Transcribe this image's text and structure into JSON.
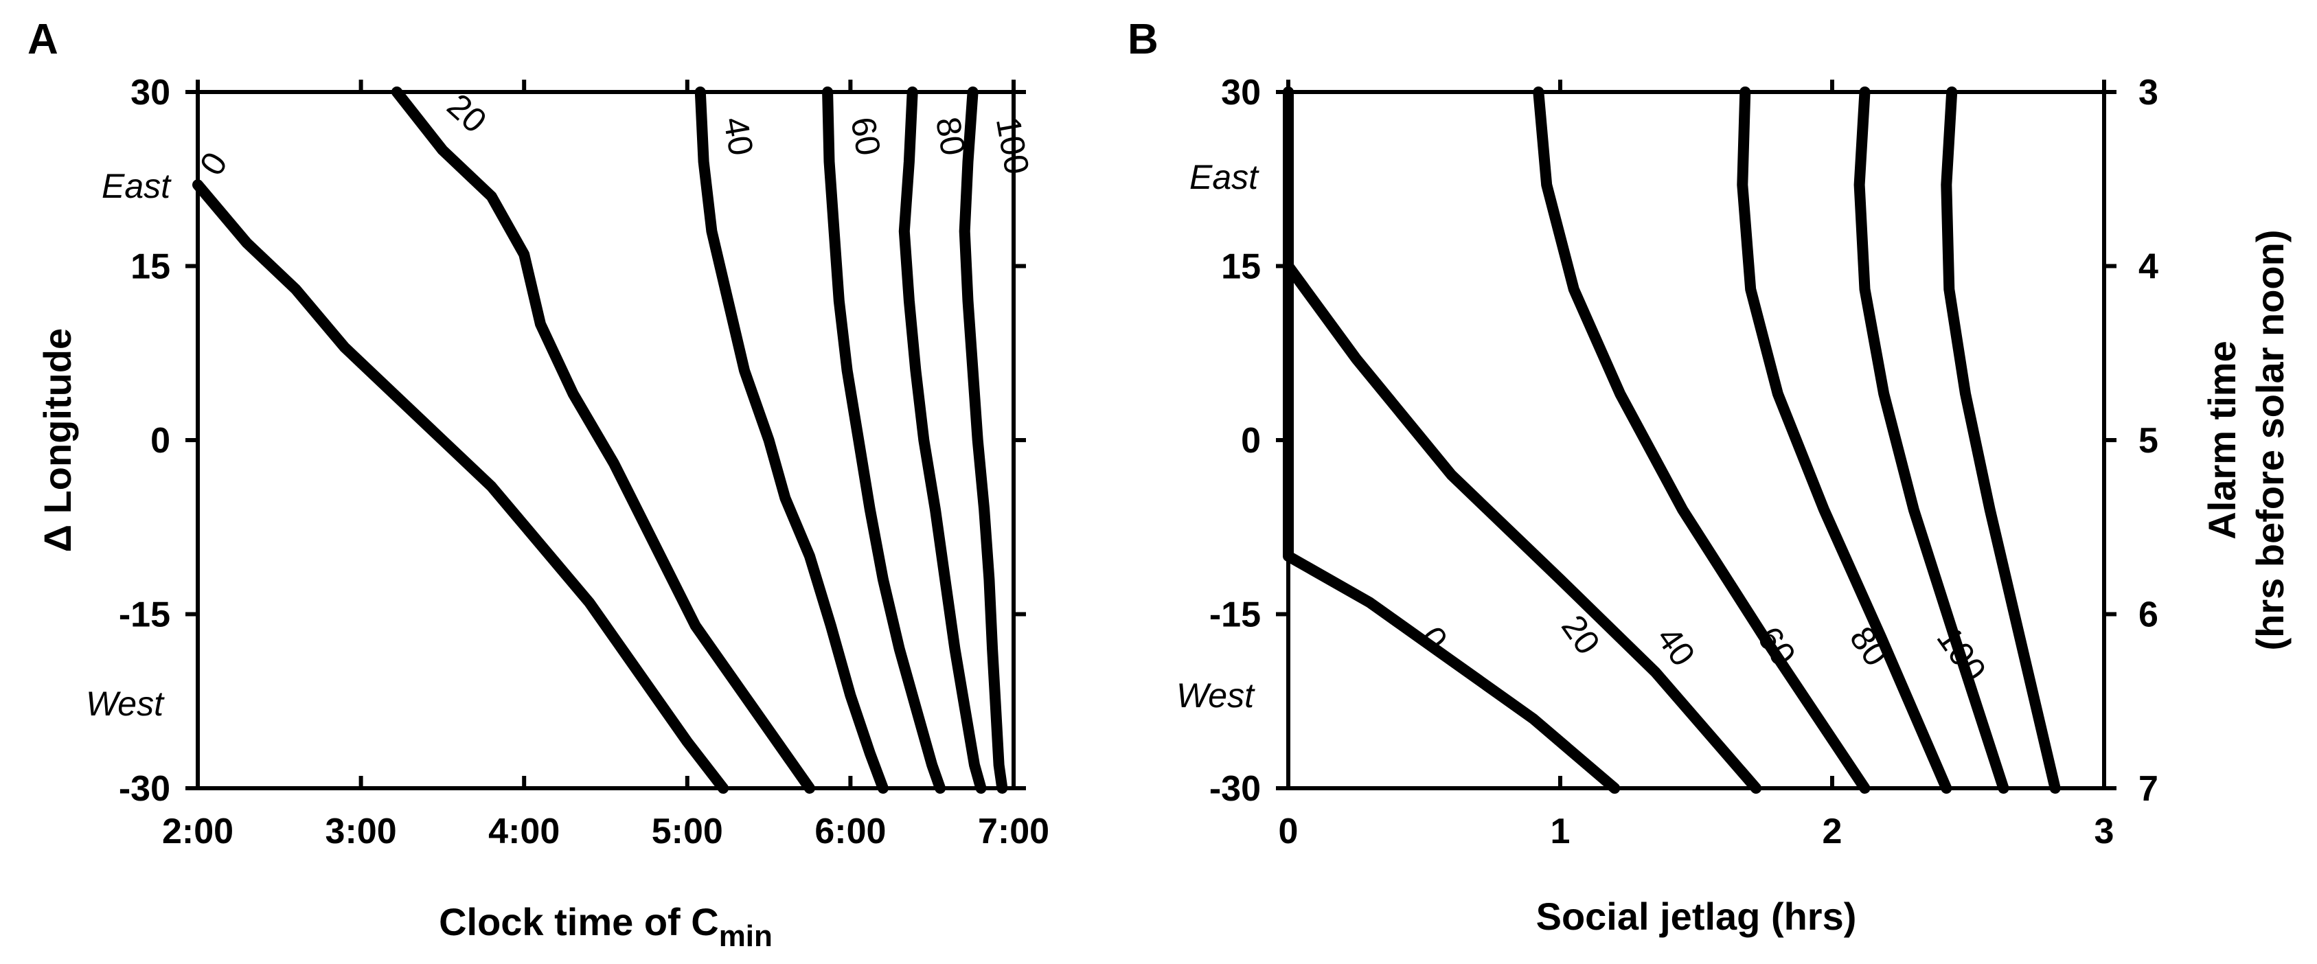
{
  "chart_data": [
    {
      "panel": "A",
      "type": "line",
      "xlabel": "Clock time of C",
      "xlabel_sub": "min",
      "ylabel": "Δ Longitude",
      "x_ticks": [
        "2:00",
        "3:00",
        "4:00",
        "5:00",
        "6:00",
        "7:00"
      ],
      "xlim": [
        2,
        7
      ],
      "y_ticks": [
        "30",
        "15",
        "0",
        "-15",
        "-30"
      ],
      "ylim": [
        -30,
        30
      ],
      "annotations": {
        "east": "East",
        "west": "West",
        "east_color": "#1a9a4a",
        "west_color": "#1a9a4a"
      },
      "label_color": "#1414e6",
      "series": [
        {
          "name": "0",
          "points": [
            [
              2.0,
              22
            ],
            [
              2.3,
              17
            ],
            [
              2.6,
              13
            ],
            [
              2.9,
              8
            ],
            [
              3.2,
              4
            ],
            [
              3.5,
              0
            ],
            [
              3.8,
              -4
            ],
            [
              4.1,
              -9
            ],
            [
              4.4,
              -14
            ],
            [
              4.7,
              -20
            ],
            [
              5.0,
              -26
            ],
            [
              5.22,
              -30
            ]
          ]
        },
        {
          "name": "20",
          "points": [
            [
              3.22,
              30
            ],
            [
              3.5,
              25
            ],
            [
              3.8,
              21
            ],
            [
              4.0,
              16
            ],
            [
              4.1,
              10
            ],
            [
              4.3,
              4
            ],
            [
              4.55,
              -2
            ],
            [
              4.8,
              -9
            ],
            [
              5.05,
              -16
            ],
            [
              5.35,
              -22
            ],
            [
              5.6,
              -27
            ],
            [
              5.75,
              -30
            ]
          ]
        },
        {
          "name": "40",
          "points": [
            [
              5.08,
              30
            ],
            [
              5.1,
              24
            ],
            [
              5.15,
              18
            ],
            [
              5.25,
              12
            ],
            [
              5.35,
              6
            ],
            [
              5.5,
              0
            ],
            [
              5.6,
              -5
            ],
            [
              5.75,
              -10
            ],
            [
              5.88,
              -16
            ],
            [
              6.0,
              -22
            ],
            [
              6.12,
              -27
            ],
            [
              6.2,
              -30
            ]
          ]
        },
        {
          "name": "60",
          "points": [
            [
              5.86,
              30
            ],
            [
              5.87,
              24
            ],
            [
              5.9,
              18
            ],
            [
              5.93,
              12
            ],
            [
              5.98,
              6
            ],
            [
              6.05,
              0
            ],
            [
              6.12,
              -6
            ],
            [
              6.2,
              -12
            ],
            [
              6.3,
              -18
            ],
            [
              6.4,
              -23
            ],
            [
              6.5,
              -28
            ],
            [
              6.55,
              -30
            ]
          ]
        },
        {
          "name": "80",
          "points": [
            [
              6.38,
              30
            ],
            [
              6.36,
              24
            ],
            [
              6.33,
              18
            ],
            [
              6.36,
              12
            ],
            [
              6.4,
              6
            ],
            [
              6.45,
              0
            ],
            [
              6.52,
              -6
            ],
            [
              6.58,
              -12
            ],
            [
              6.64,
              -18
            ],
            [
              6.7,
              -23
            ],
            [
              6.76,
              -28
            ],
            [
              6.8,
              -30
            ]
          ]
        },
        {
          "name": "100",
          "points": [
            [
              6.75,
              30
            ],
            [
              6.72,
              24
            ],
            [
              6.7,
              18
            ],
            [
              6.72,
              12
            ],
            [
              6.75,
              6
            ],
            [
              6.78,
              0
            ],
            [
              6.82,
              -6
            ],
            [
              6.85,
              -12
            ],
            [
              6.87,
              -18
            ],
            [
              6.89,
              -23
            ],
            [
              6.91,
              -28
            ],
            [
              6.93,
              -30
            ]
          ]
        }
      ]
    },
    {
      "panel": "B",
      "type": "line",
      "xlabel": "Social jetlag (hrs)",
      "ylabel_right_line1": "Alarm time",
      "ylabel_right_line2": "(hrs before solar noon)",
      "x_ticks": [
        "0",
        "1",
        "2",
        "3"
      ],
      "xlim": [
        0,
        3
      ],
      "y_ticks": [
        "30",
        "15",
        "0",
        "-15",
        "-30"
      ],
      "ylim": [
        -30,
        30
      ],
      "y2_ticks": [
        "3",
        "4",
        "5",
        "6",
        "7"
      ],
      "annotations": {
        "east": "East",
        "west": "West"
      },
      "series": [
        {
          "name": "0",
          "points": [
            [
              0,
              30
            ],
            [
              0,
              -10
            ],
            [
              0.3,
              -14
            ],
            [
              0.6,
              -19
            ],
            [
              0.9,
              -24
            ],
            [
              1.2,
              -30
            ]
          ]
        },
        {
          "name": "20",
          "points": [
            [
              0,
              30
            ],
            [
              0,
              15
            ],
            [
              0.25,
              7
            ],
            [
              0.6,
              -3
            ],
            [
              1.0,
              -12
            ],
            [
              1.35,
              -20
            ],
            [
              1.72,
              -30
            ]
          ]
        },
        {
          "name": "40",
          "points": [
            [
              0.92,
              30
            ],
            [
              0.95,
              22
            ],
            [
              1.05,
              13
            ],
            [
              1.22,
              4
            ],
            [
              1.45,
              -6
            ],
            [
              1.75,
              -17
            ],
            [
              2.12,
              -30
            ]
          ]
        },
        {
          "name": "60",
          "points": [
            [
              1.68,
              30
            ],
            [
              1.67,
              22
            ],
            [
              1.7,
              13
            ],
            [
              1.8,
              4
            ],
            [
              1.97,
              -6
            ],
            [
              2.18,
              -17
            ],
            [
              2.42,
              -30
            ]
          ]
        },
        {
          "name": "80",
          "points": [
            [
              2.12,
              30
            ],
            [
              2.1,
              22
            ],
            [
              2.12,
              13
            ],
            [
              2.19,
              4
            ],
            [
              2.3,
              -6
            ],
            [
              2.45,
              -17
            ],
            [
              2.63,
              -30
            ]
          ]
        },
        {
          "name": "100",
          "points": [
            [
              2.44,
              30
            ],
            [
              2.42,
              22
            ],
            [
              2.43,
              13
            ],
            [
              2.49,
              4
            ],
            [
              2.58,
              -6
            ],
            [
              2.69,
              -17
            ],
            [
              2.82,
              -30
            ]
          ]
        }
      ]
    }
  ]
}
